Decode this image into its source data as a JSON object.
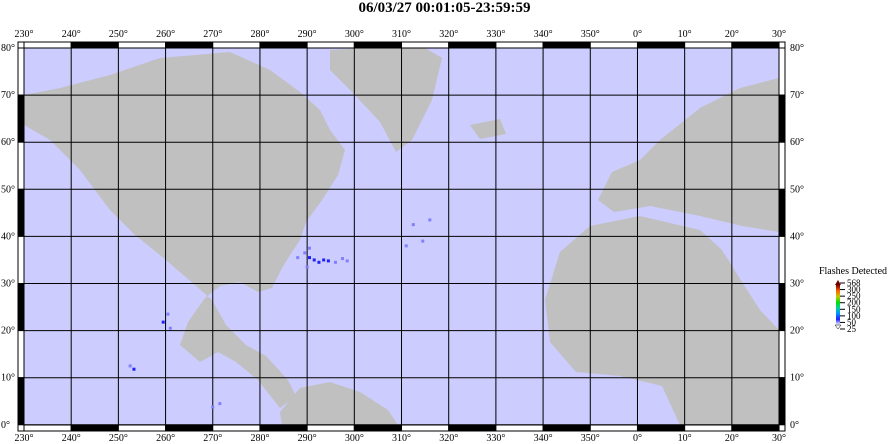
{
  "title": "06/03/27 00:01:05-23:59:59",
  "map": {
    "ocean_color": "#ccccff",
    "land_color": "#c0c0c0",
    "lon_labels": [
      "230°",
      "240°",
      "250°",
      "260°",
      "270°",
      "280°",
      "290°",
      "300°",
      "310°",
      "320°",
      "330°",
      "340°",
      "350°",
      "0°",
      "10°",
      "20°",
      "30°"
    ],
    "lat_labels": [
      "80°",
      "70°",
      "60°",
      "50°",
      "40°",
      "30°",
      "20°",
      "10°",
      "0°"
    ],
    "flashes": [
      {
        "lon": 290.5,
        "lat": 35.5,
        "count": 60
      },
      {
        "lon": 291.5,
        "lat": 35,
        "count": 80
      },
      {
        "lon": 292.5,
        "lat": 34.5,
        "count": 70
      },
      {
        "lon": 293.5,
        "lat": 35,
        "count": 60
      },
      {
        "lon": 294.5,
        "lat": 34.8,
        "count": 50
      },
      {
        "lon": 296,
        "lat": 34.5,
        "count": 40
      },
      {
        "lon": 289.5,
        "lat": 36.5,
        "count": 40
      },
      {
        "lon": 290.5,
        "lat": 37.5,
        "count": 35
      },
      {
        "lon": 288,
        "lat": 35.5,
        "count": 30
      },
      {
        "lon": 297.5,
        "lat": 35.3,
        "count": 30
      },
      {
        "lon": 290,
        "lat": 33.5,
        "count": 35
      },
      {
        "lon": 298.5,
        "lat": 34.8,
        "count": 28
      },
      {
        "lon": 312.5,
        "lat": 42.5,
        "count": 40
      },
      {
        "lon": 311,
        "lat": 38,
        "count": 27
      },
      {
        "lon": 314.5,
        "lat": 39,
        "count": 25
      },
      {
        "lon": 316,
        "lat": 43.5,
        "count": 25
      },
      {
        "lon": 260.5,
        "lat": 23.5,
        "count": 40
      },
      {
        "lon": 259.5,
        "lat": 21.8,
        "count": 70
      },
      {
        "lon": 261,
        "lat": 20.5,
        "count": 30
      },
      {
        "lon": 252.5,
        "lat": 12.5,
        "count": 40
      },
      {
        "lon": 253.3,
        "lat": 11.8,
        "count": 50
      },
      {
        "lon": 271.5,
        "lat": 4.5,
        "count": 40
      },
      {
        "lon": 270,
        "lat": 3.8,
        "count": 30
      }
    ]
  },
  "legend": {
    "title": "Flashes Detected",
    "ticks": [
      "568",
      "300",
      "250",
      "200",
      "150",
      "100",
      "50",
      "25"
    ],
    "colors": [
      "#700000",
      "#ff6000",
      "#c8c800",
      "#00e000",
      "#00d0a0",
      "#0090ff",
      "#2020ff",
      "#ffffff"
    ]
  }
}
